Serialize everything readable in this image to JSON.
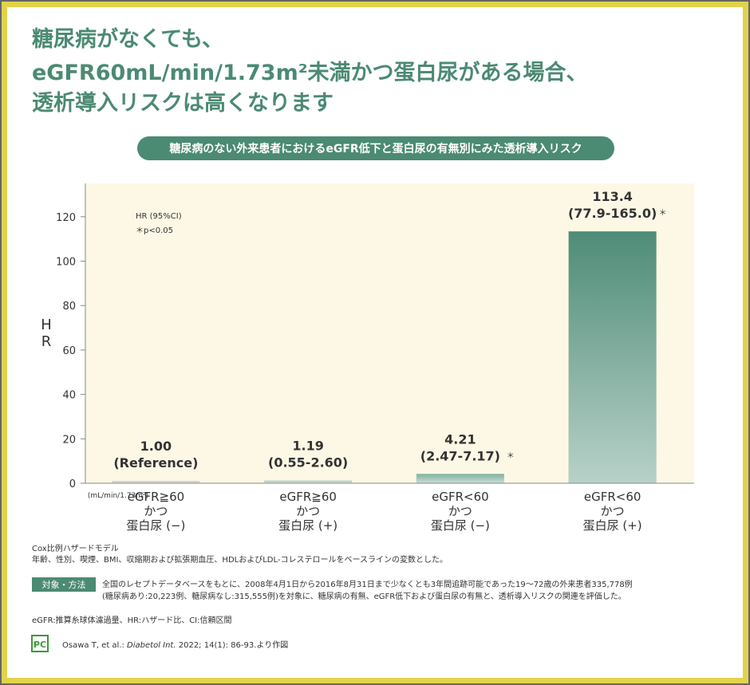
{
  "header": {
    "title_lines": [
      "糖尿病がなくても、",
      "eGFR60mL/min/1.73m²未満かつ蛋白尿がある場合、",
      "透析導入リスクは高くなります"
    ]
  },
  "chart_data": {
    "type": "bar",
    "title": "糖尿病のない外来患者におけるeGFR低下と蛋白尿の有無別にみた透析導入リスク",
    "y_label": "HR",
    "x_unit": "(mL/min/1.73m²)",
    "legend_lines": [
      "HR (95%CI)",
      "＊p<0.05"
    ],
    "categories": [
      [
        "eGFR≧60",
        "かつ",
        "蛋白尿 (−)"
      ],
      [
        "eGFR≧60",
        "かつ",
        "蛋白尿 (+)"
      ],
      [
        "eGFR<60",
        "かつ",
        "蛋白尿 (−)"
      ],
      [
        "eGFR<60",
        "かつ",
        "蛋白尿 (+)"
      ]
    ],
    "values": [
      1,
      1.19,
      4.21,
      113.4
    ],
    "value_labels": [
      "1.00",
      "1.19",
      "4.21",
      "113.4"
    ],
    "ci_labels": [
      "(Reference)",
      "(0.55-2.60)",
      "(2.47-7.17)",
      "(77.9-165.0)"
    ],
    "significance": [
      null,
      null,
      "＊",
      "＊"
    ],
    "colors": [
      "#c4c7c2",
      "#a7c8bb",
      "#7fb09f",
      "#4f8c77"
    ],
    "ylim": [
      0,
      135
    ],
    "yticks": [
      0,
      20,
      40,
      60,
      80,
      100,
      120
    ]
  },
  "notes": {
    "model_lines": [
      "Cox比例ハザードモデル",
      "年齢、性別、喫煙、BMI、収縮期および拡張期血圧、HDLおよびLDL-コレステロールをベースラインの変数とした。"
    ],
    "method_badge": "対象・方法",
    "method_lines": [
      "全国のレセプトデータベースをもとに、2008年4月1日から2016年8月31日まで少なくとも3年間追跡可能であった19〜72歳の外来患者335,778例",
      "(糖尿病あり:20,223例、糖尿病なし:315,555例)を対象に、糖尿病の有無、eGFR低下および蛋白尿の有無と、透析導入リスクの関連を評価した。"
    ],
    "abbreviations": "eGFR:推算糸球体濾過量、HR:ハザード比、CI:信頼区間",
    "logo": "PC",
    "reference": [
      "Osawa T, et al.: ",
      "Diabetol Int.",
      " 2022; 14(1): 86-93.より作図"
    ]
  }
}
